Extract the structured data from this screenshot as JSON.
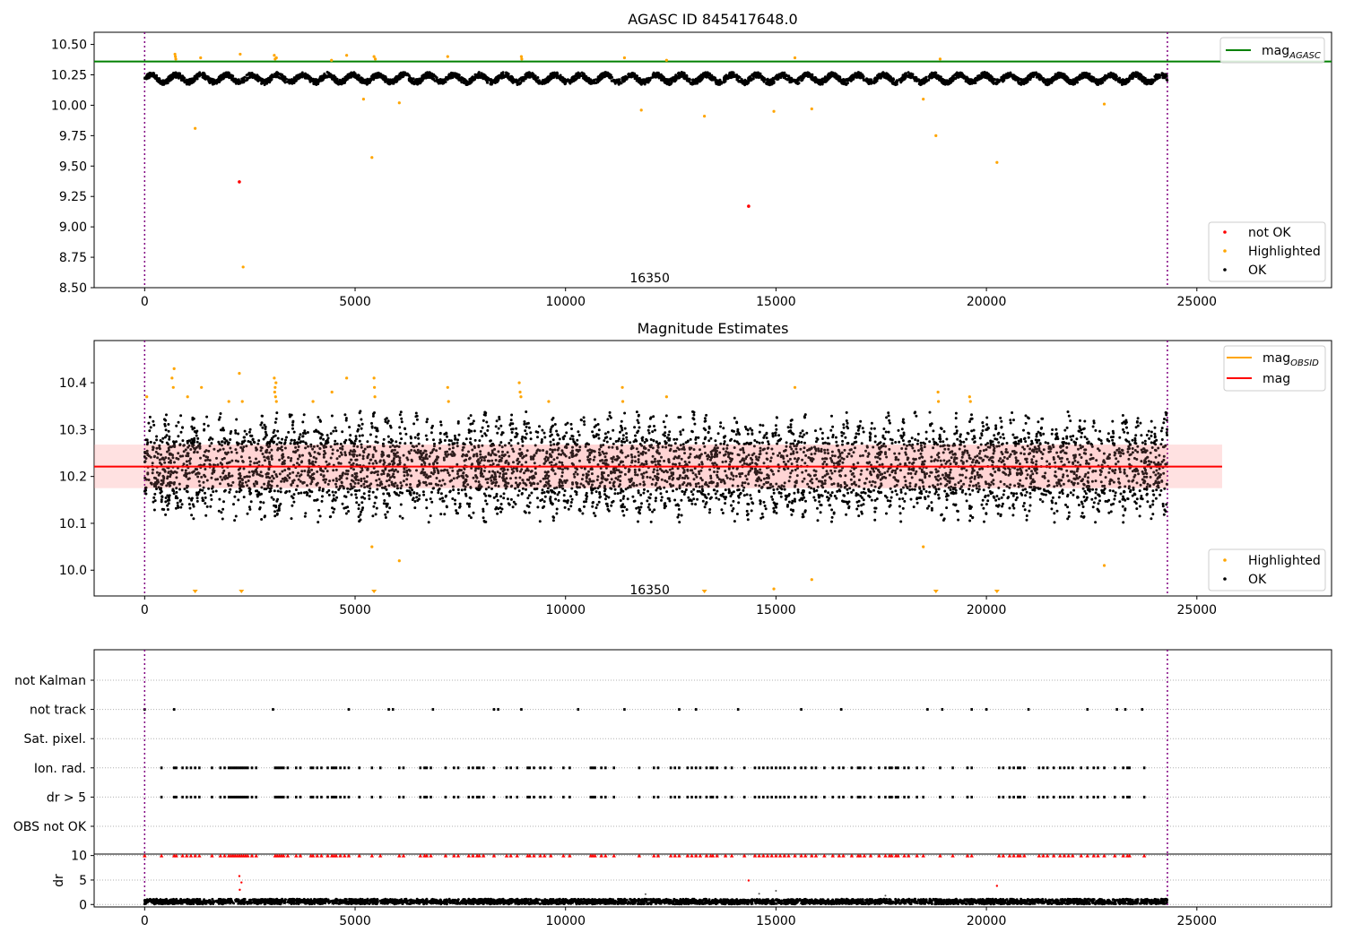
{
  "chart_data": [
    {
      "type": "scatter",
      "title": "AGASC ID 845417648.0",
      "xlim": [
        -1200,
        28200
      ],
      "ylim": [
        8.5,
        10.6
      ],
      "xticks": [
        0,
        5000,
        10000,
        15000,
        20000,
        25000
      ],
      "yticks": [
        8.5,
        8.75,
        9.0,
        9.25,
        9.5,
        9.75,
        10.0,
        10.25,
        10.5
      ],
      "ytick_labels": [
        "8.50",
        "8.75",
        "9.00",
        "9.25",
        "9.50",
        "9.75",
        "10.00",
        "10.25",
        "10.50"
      ],
      "obs_lines_x": [
        0,
        24300
      ],
      "obs_label": {
        "text": "16350",
        "x": 12000,
        "y": 8.58
      },
      "reference_line": {
        "name": "mag",
        "subscript": "AGASC",
        "value": 10.36,
        "color": "#008000"
      },
      "ok_band": {
        "x_range": [
          0,
          24300
        ],
        "center": 10.22,
        "amplitude": 0.05,
        "color": "#000000"
      },
      "highlighted": {
        "color": "#ffa500",
        "points": [
          [
            720,
            10.42
          ],
          [
            730,
            10.4
          ],
          [
            740,
            10.38
          ],
          [
            1200,
            9.81
          ],
          [
            1330,
            10.39
          ],
          [
            2270,
            10.42
          ],
          [
            2340,
            8.67
          ],
          [
            3080,
            10.41
          ],
          [
            3100,
            10.38
          ],
          [
            3130,
            10.39
          ],
          [
            4440,
            10.37
          ],
          [
            4800,
            10.41
          ],
          [
            5200,
            10.05
          ],
          [
            5400,
            9.57
          ],
          [
            5450,
            10.4
          ],
          [
            5480,
            10.38
          ],
          [
            6050,
            10.02
          ],
          [
            7200,
            10.4
          ],
          [
            8950,
            10.4
          ],
          [
            8960,
            10.38
          ],
          [
            11400,
            10.39
          ],
          [
            11800,
            9.96
          ],
          [
            12400,
            10.37
          ],
          [
            13300,
            9.91
          ],
          [
            14950,
            9.95
          ],
          [
            15450,
            10.39
          ],
          [
            15850,
            9.97
          ],
          [
            18500,
            10.05
          ],
          [
            18800,
            9.75
          ],
          [
            18900,
            10.38
          ],
          [
            20250,
            9.53
          ],
          [
            22800,
            10.01
          ]
        ]
      },
      "not_ok": {
        "color": "#ff0000",
        "points": [
          [
            2250,
            9.37
          ],
          [
            14350,
            9.17
          ]
        ]
      },
      "legend_top": [
        {
          "label": "mag",
          "subscript": "AGASC",
          "color": "#008000",
          "kind": "line"
        }
      ],
      "legend_bottom": [
        {
          "label": "not OK",
          "color": "#ff0000",
          "kind": "dot"
        },
        {
          "label": "Highlighted",
          "color": "#ffa500",
          "kind": "dot"
        },
        {
          "label": "OK",
          "color": "#000000",
          "kind": "dot"
        }
      ]
    },
    {
      "type": "scatter",
      "title": "Magnitude Estimates",
      "xlim": [
        -1200,
        28200
      ],
      "ylim": [
        9.945,
        10.49
      ],
      "xticks": [
        0,
        5000,
        10000,
        15000,
        20000,
        25000
      ],
      "yticks": [
        10.0,
        10.1,
        10.2,
        10.3,
        10.4
      ],
      "ytick_labels": [
        "10.0",
        "10.1",
        "10.2",
        "10.3",
        "10.4"
      ],
      "obs_lines_x": [
        0,
        24300
      ],
      "obs_label": {
        "text": "16350",
        "x": 12000,
        "y": 9.97
      },
      "mag_line": {
        "name": "mag",
        "value": 10.221,
        "x_range": [
          -1200,
          25600
        ],
        "color": "#ff0000"
      },
      "mag_band": {
        "low": 10.175,
        "high": 10.268,
        "x_range": [
          -1200,
          25600
        ],
        "color": "#ff9a9a"
      },
      "ok_band": {
        "x_range": [
          0,
          24300
        ],
        "center": 10.22,
        "amplitude": 0.12,
        "color": "#000000"
      },
      "highlighted": {
        "color": "#ffa500",
        "points": [
          [
            50,
            10.37
          ],
          [
            650,
            10.41
          ],
          [
            680,
            10.39
          ],
          [
            700,
            10.43
          ],
          [
            1020,
            10.37
          ],
          [
            1350,
            10.39
          ],
          [
            2000,
            10.36
          ],
          [
            2250,
            10.42
          ],
          [
            2320,
            10.36
          ],
          [
            3080,
            10.41
          ],
          [
            3090,
            10.38
          ],
          [
            3100,
            10.39
          ],
          [
            3110,
            10.37
          ],
          [
            3120,
            10.4
          ],
          [
            3130,
            10.36
          ],
          [
            4000,
            10.36
          ],
          [
            4450,
            10.38
          ],
          [
            4800,
            10.41
          ],
          [
            5400,
            10.05
          ],
          [
            5450,
            10.41
          ],
          [
            5460,
            10.39
          ],
          [
            5470,
            10.37
          ],
          [
            6050,
            10.02
          ],
          [
            7200,
            10.39
          ],
          [
            7220,
            10.36
          ],
          [
            8900,
            10.4
          ],
          [
            8920,
            10.38
          ],
          [
            8940,
            10.37
          ],
          [
            9600,
            10.36
          ],
          [
            11350,
            10.39
          ],
          [
            11360,
            10.36
          ],
          [
            12400,
            10.37
          ],
          [
            14950,
            9.96
          ],
          [
            15450,
            10.39
          ],
          [
            15850,
            9.98
          ],
          [
            18500,
            10.05
          ],
          [
            18850,
            10.38
          ],
          [
            18860,
            10.36
          ],
          [
            19600,
            10.37
          ],
          [
            19620,
            10.36
          ],
          [
            22800,
            10.01
          ]
        ]
      },
      "highlighted_below": {
        "color": "#ffa500",
        "x": [
          1200,
          2300,
          5450,
          13300,
          18800,
          20250
        ]
      },
      "legend_top": [
        {
          "label": "mag",
          "subscript": "OBSID",
          "color": "#ffa500",
          "kind": "line"
        },
        {
          "label": "mag",
          "subscript": "",
          "color": "#ff0000",
          "kind": "line"
        }
      ],
      "legend_bottom": [
        {
          "label": "Highlighted",
          "color": "#ffa500",
          "kind": "dot"
        },
        {
          "label": "OK",
          "color": "#000000",
          "kind": "dot"
        }
      ]
    },
    {
      "type": "scatter",
      "xlim": [
        -1200,
        28200
      ],
      "categories": [
        "not Kalman",
        "not track",
        "Sat. pixel.",
        "Ion. rad.",
        "dr > 5",
        "OBS not OK"
      ],
      "obs_lines_x": [
        0,
        24300
      ],
      "flag_points": {
        "not track": [
          0,
          700,
          3050,
          4850,
          5800,
          5900,
          6850,
          8300,
          8400,
          8950,
          10300,
          11400,
          12700,
          13100,
          14100,
          15600,
          16550,
          18600,
          18950,
          19650,
          20000,
          21000,
          22400,
          23100,
          23300,
          23700
        ],
        "Ion. rad.": [
          400,
          700,
          750,
          900,
          1000,
          1100,
          1200,
          1300,
          1600,
          1800,
          1900,
          2000,
          2050,
          2100,
          2150,
          2200,
          2250,
          2300,
          2350,
          2400,
          2450,
          2550,
          2650,
          3100,
          3150,
          3200,
          3250,
          3300,
          3400,
          3600,
          3700,
          3950,
          4000,
          4100,
          4200,
          4350,
          4450,
          4500,
          4550,
          4650,
          4750,
          4850,
          5100,
          5400,
          5600,
          6050,
          6150,
          6550,
          6650,
          6700,
          6800,
          7150,
          7350,
          7450,
          7700,
          7800,
          7900,
          7950,
          8050,
          8300,
          8600,
          8700,
          8850,
          9100,
          9150,
          9250,
          9400,
          9500,
          9650,
          9950,
          10100,
          10600,
          10650,
          10700,
          10850,
          10950,
          11150,
          11750,
          12100,
          12200,
          12500,
          12600,
          12700,
          12900,
          13000,
          13100,
          13200,
          13350,
          13450,
          13500,
          13600,
          13800,
          13950,
          14250,
          14500,
          14600,
          14700,
          14800,
          14900,
          15000,
          15100,
          15200,
          15300,
          15450,
          15600,
          15700,
          15850,
          15950,
          16150,
          16350,
          16500,
          16600,
          16800,
          16950,
          17000,
          17100,
          17250,
          17450,
          17600,
          17700,
          17750,
          17850,
          17900,
          18050,
          18150,
          18350,
          18500,
          18900,
          19200,
          19550,
          19650,
          20300,
          20400,
          20550,
          20650,
          20750,
          20800,
          20900,
          21250,
          21350,
          21450,
          21600,
          21750,
          21850,
          21950,
          22050,
          22250,
          22400,
          22550,
          22650,
          22800,
          23050,
          23250,
          23350,
          23400,
          23750
        ],
        "dr > 5": [
          400,
          700,
          750,
          900,
          1000,
          1100,
          1200,
          1300,
          1600,
          1800,
          1900,
          2000,
          2050,
          2100,
          2150,
          2200,
          2250,
          2300,
          2350,
          2400,
          2450,
          2550,
          2650,
          3100,
          3150,
          3200,
          3250,
          3300,
          3400,
          3600,
          3700,
          3950,
          4000,
          4100,
          4200,
          4350,
          4450,
          4500,
          4550,
          4650,
          4750,
          4850,
          5100,
          5400,
          5600,
          6050,
          6150,
          6550,
          6650,
          6700,
          6800,
          7150,
          7350,
          7450,
          7700,
          7800,
          7900,
          7950,
          8050,
          8300,
          8600,
          8700,
          8850,
          9100,
          9150,
          9250,
          9400,
          9500,
          9650,
          9950,
          10100,
          10600,
          10650,
          10700,
          10850,
          10950,
          11150,
          11750,
          12100,
          12200,
          12500,
          12600,
          12700,
          12900,
          13000,
          13100,
          13200,
          13350,
          13450,
          13500,
          13600,
          13800,
          13950,
          14250,
          14500,
          14600,
          14700,
          14800,
          14900,
          15000,
          15100,
          15200,
          15300,
          15450,
          15600,
          15700,
          15850,
          15950,
          16150,
          16350,
          16500,
          16600,
          16800,
          16950,
          17000,
          17100,
          17250,
          17450,
          17600,
          17700,
          17750,
          17850,
          17900,
          18050,
          18150,
          18350,
          18500,
          18900,
          19200,
          19550,
          19650,
          20300,
          20400,
          20550,
          20650,
          20750,
          20800,
          20900,
          21250,
          21350,
          21450,
          21600,
          21750,
          21850,
          21950,
          22050,
          22250,
          22400,
          22550,
          22650,
          22800,
          23050,
          23250,
          23350,
          23400,
          23750
        ]
      }
    },
    {
      "type": "scatter",
      "ylabel": "dr",
      "xlim": [
        -1200,
        28200
      ],
      "ylim": [
        -0.5,
        10.3
      ],
      "xticks": [
        0,
        5000,
        10000,
        15000,
        20000,
        25000
      ],
      "yticks": [
        0,
        5,
        10
      ],
      "ytick_labels": [
        "0",
        "5",
        "10"
      ],
      "obs_lines_x": [
        0,
        24300
      ],
      "ok_band": {
        "x_range": [
          0,
          24300
        ],
        "center": 0.6,
        "amplitude": 0.5,
        "color": "#000000"
      },
      "clipped": {
        "color": "#ff0000",
        "value": 10,
        "x": [
          0,
          400,
          700,
          750,
          900,
          1000,
          1100,
          1200,
          1300,
          1600,
          1800,
          1900,
          2000,
          2050,
          2100,
          2150,
          2200,
          2250,
          2300,
          2350,
          2400,
          2450,
          2550,
          2650,
          3100,
          3150,
          3200,
          3250,
          3300,
          3400,
          3600,
          3700,
          3950,
          4000,
          4100,
          4200,
          4350,
          4450,
          4500,
          4550,
          4650,
          4750,
          4850,
          5100,
          5400,
          5600,
          6050,
          6150,
          6550,
          6650,
          6700,
          6800,
          7150,
          7350,
          7450,
          7700,
          7800,
          7900,
          7950,
          8050,
          8300,
          8600,
          8700,
          8850,
          9100,
          9150,
          9250,
          9400,
          9500,
          9650,
          9950,
          10100,
          10600,
          10650,
          10700,
          10850,
          10950,
          11150,
          11750,
          12100,
          12200,
          12500,
          12600,
          12700,
          12900,
          13000,
          13100,
          13200,
          13350,
          13450,
          13500,
          13600,
          13800,
          13950,
          14250,
          14500,
          14600,
          14700,
          14800,
          14900,
          15000,
          15100,
          15200,
          15300,
          15450,
          15600,
          15700,
          15850,
          15950,
          16150,
          16350,
          16500,
          16600,
          16800,
          16950,
          17000,
          17100,
          17250,
          17450,
          17600,
          17700,
          17750,
          17850,
          17900,
          18050,
          18150,
          18350,
          18500,
          18900,
          19200,
          19550,
          19650,
          20300,
          20400,
          20550,
          20650,
          20750,
          20800,
          20900,
          21250,
          21350,
          21450,
          21600,
          21750,
          21850,
          21950,
          22050,
          22250,
          22400,
          22550,
          22650,
          22800,
          23050,
          23250,
          23350,
          23400,
          23750
        ]
      },
      "red_points": [
        [
          2250,
          5.8
        ],
        [
          2300,
          4.5
        ],
        [
          2260,
          3.0
        ],
        [
          14350,
          4.9
        ],
        [
          20250,
          3.8
        ]
      ],
      "gray_points": [
        [
          11900,
          2.1
        ],
        [
          14600,
          2.2
        ],
        [
          15000,
          2.8
        ],
        [
          17600,
          1.8
        ]
      ]
    }
  ]
}
